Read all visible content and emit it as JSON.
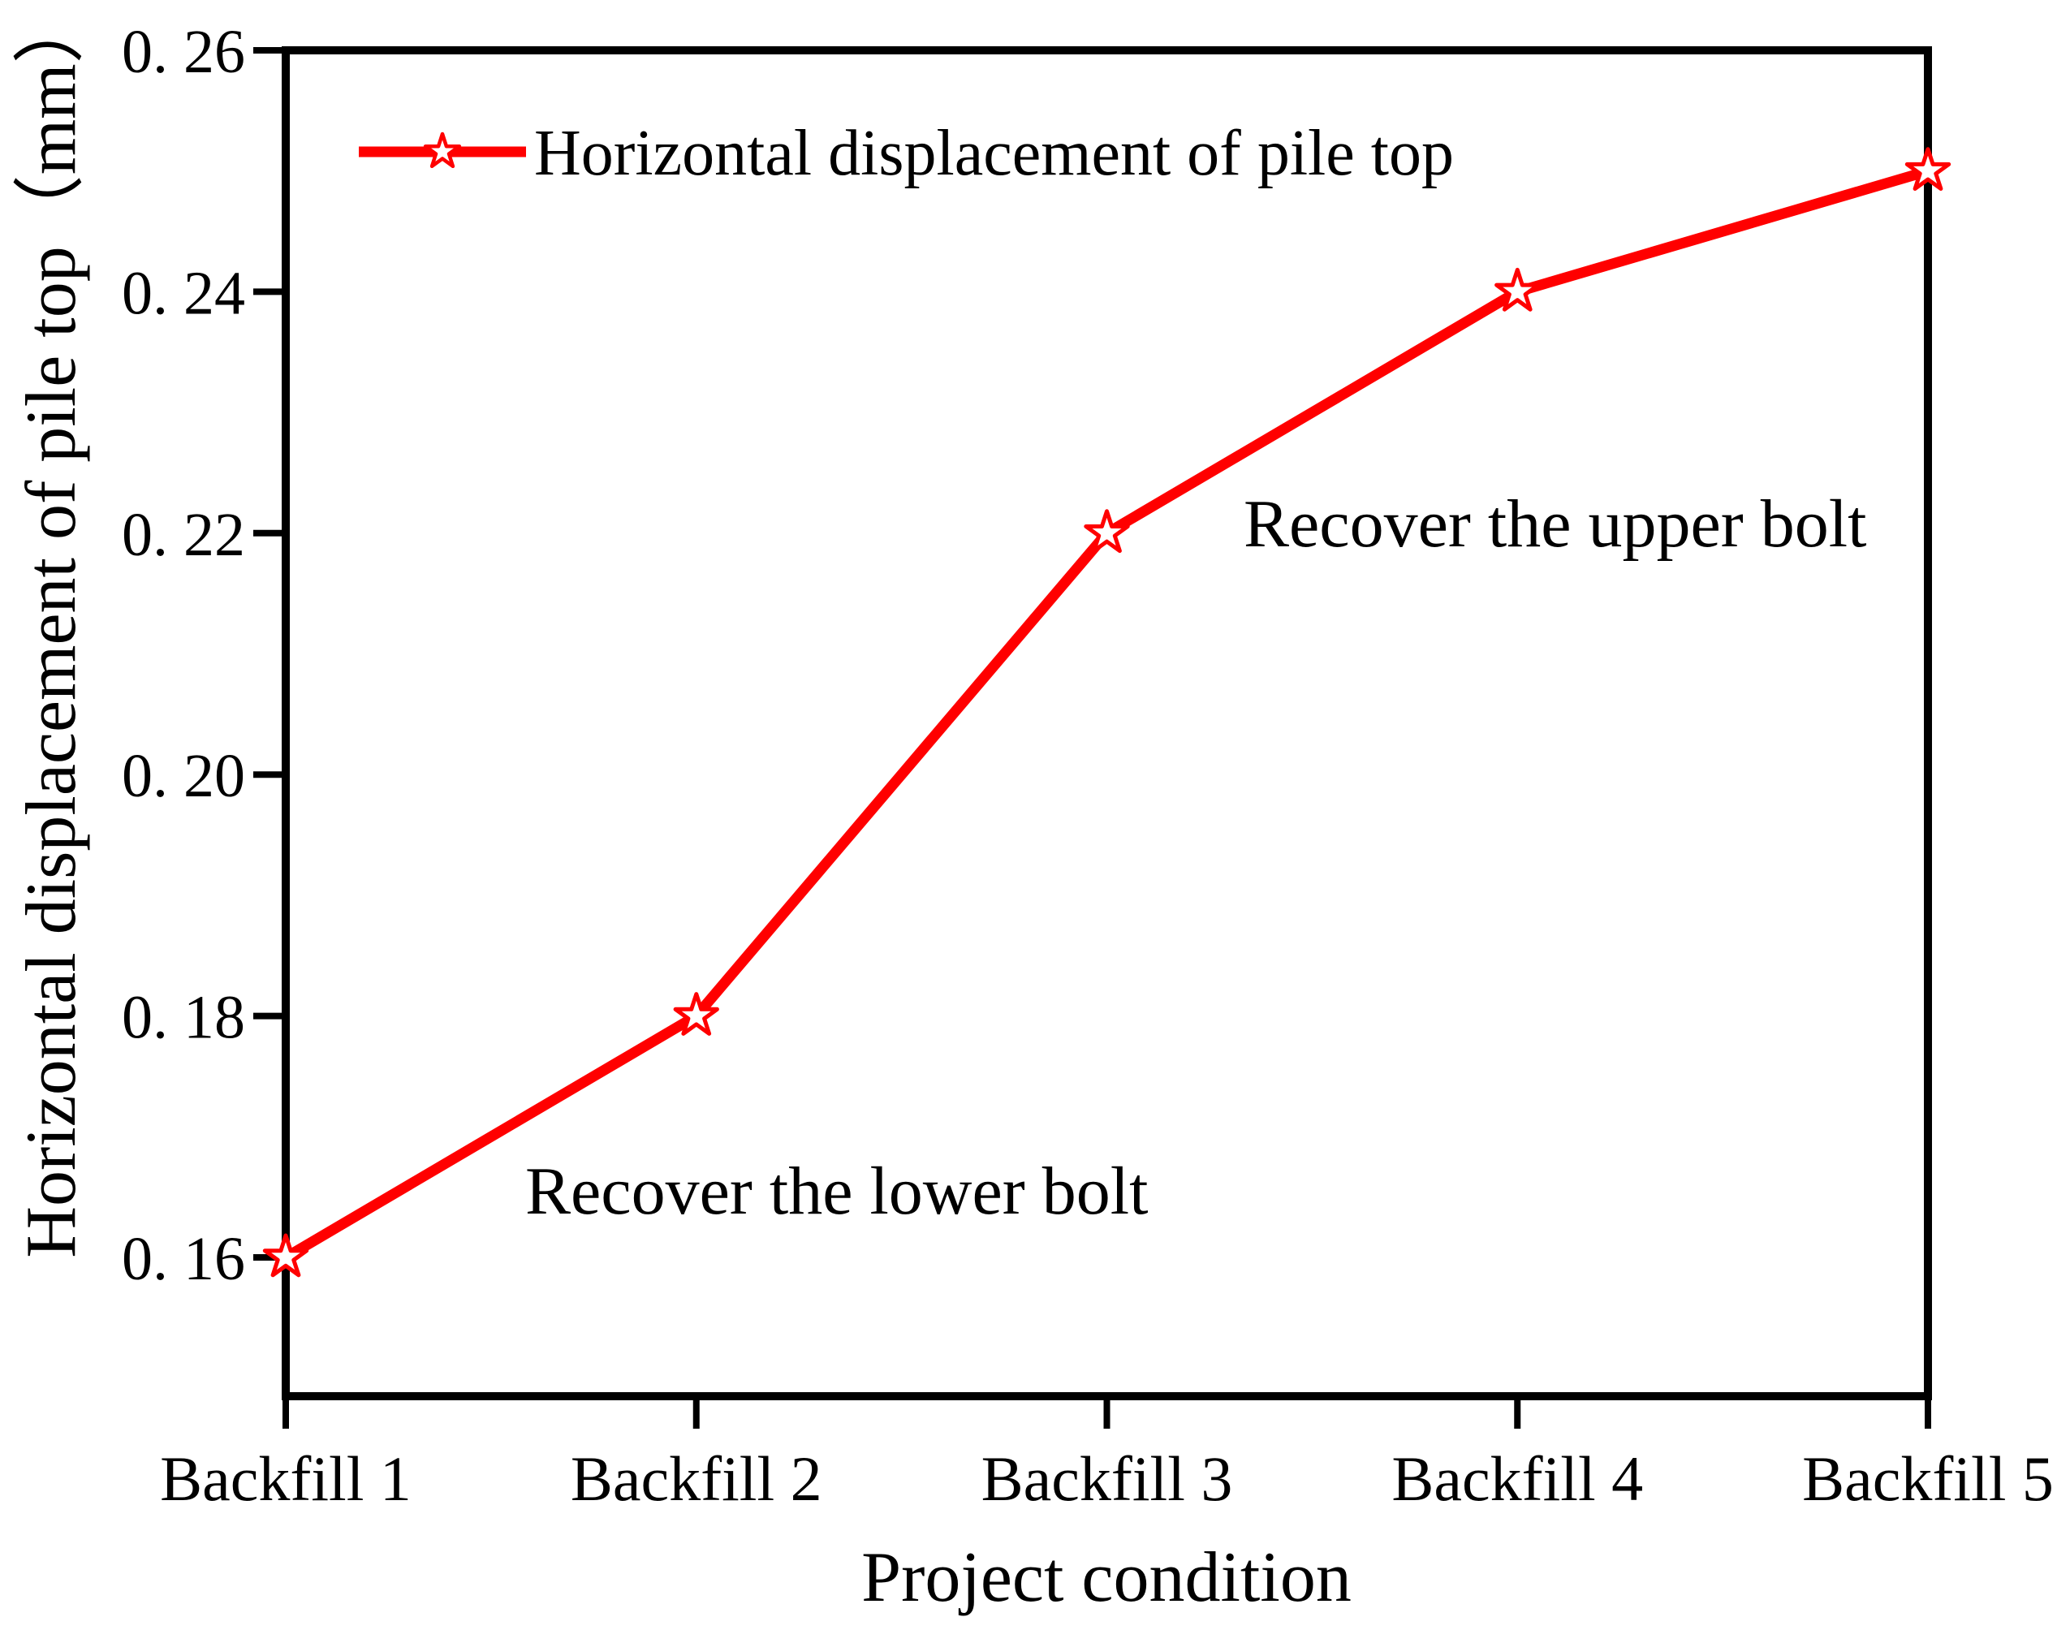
{
  "figure": {
    "background": "#ffffff",
    "accent_red": "#ff0000",
    "text_color": "#000000"
  },
  "chart_data": {
    "type": "line",
    "title": "",
    "xlabel": "Project condition",
    "ylabel": "Horizontal displacement of pile top（mm）",
    "categories": [
      "Backfill 1",
      "Backfill 2",
      "Backfill 3",
      "Backfill 4",
      "Backfill 5"
    ],
    "series": [
      {
        "name": "Horizontal displacement of pile top",
        "values": [
          0.16,
          0.18,
          0.22,
          0.24,
          0.25
        ],
        "color": "#ff0000",
        "marker": "open-star"
      }
    ],
    "y_ticks": {
      "values": [
        0.26,
        0.24,
        0.22,
        0.2,
        0.18,
        0.16
      ],
      "labels": [
        "0. 26",
        "0. 24",
        "0. 22",
        "0. 20",
        "0. 18",
        "0. 16"
      ]
    },
    "ylim": [
      0.1485,
      0.26
    ],
    "grid": false,
    "legend_position": "top-left-inside",
    "annotations": [
      {
        "text": "Recover the lower bolt"
      },
      {
        "text": "Recover the upper bolt"
      }
    ]
  }
}
